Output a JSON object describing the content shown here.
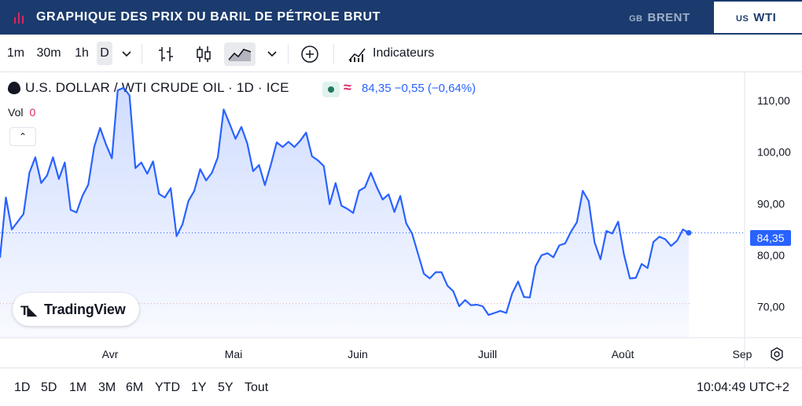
{
  "header": {
    "title": "GRAPHIQUE DES PRIX DU BARIL DE PÉTROLE BRUT",
    "tabs": [
      {
        "cc": "GB",
        "label": "BRENT",
        "active": false
      },
      {
        "cc": "US",
        "label": "WTI",
        "active": true
      }
    ]
  },
  "toolbar": {
    "intervals": [
      "1m",
      "30m",
      "1h",
      "D"
    ],
    "active_interval": "D",
    "indicators_label": "Indicateurs"
  },
  "legend": {
    "symbol": "U.S. DOLLAR / WTI CRUDE OIL · 1D · ICE",
    "approx_glyph": "≈",
    "price_text": "84,35  −0,55 (−0,64%)",
    "vol_label": "Vol",
    "vol_value": "0",
    "collapse_glyph": "⌃"
  },
  "price_tag": "84,35",
  "watermark": "TradingView",
  "range_bar": {
    "ranges": [
      "1D",
      "5D",
      "1M",
      "3M",
      "6M",
      "YTD",
      "1Y",
      "5Y",
      "Tout"
    ],
    "clock": "10:04:49 UTC+2"
  },
  "colors": {
    "header_bg": "#1b3b6e",
    "line": "#2962ff",
    "accent_red": "#e0245e"
  },
  "icons": [
    "bars-chart-icon",
    "chevron-down-icon",
    "bar-style-icon",
    "candles-icon",
    "area-chart-icon",
    "plus-circle-icon",
    "indicators-icon",
    "drop-icon",
    "gear-icon"
  ],
  "chart_data": {
    "type": "area",
    "y_ticks": [
      "110,00",
      "100,00",
      "90,00",
      "80,00",
      "70,00"
    ],
    "ylim": [
      64,
      115.5
    ],
    "x_labels": [
      "Avr",
      "Mai",
      "Juin",
      "Juill",
      "Août",
      "Sep"
    ],
    "last_value": 84.35,
    "grid": false,
    "values": [
      79.5,
      91.2,
      85.0,
      86.5,
      88.0,
      96.0,
      99.0,
      94.0,
      95.5,
      99.0,
      94.8,
      98.0,
      88.8,
      88.3,
      91.5,
      93.7,
      101.0,
      104.7,
      101.5,
      98.8,
      112.0,
      112.5,
      111.0,
      96.9,
      98.0,
      95.8,
      98.2,
      91.9,
      91.2,
      93.0,
      83.7,
      86.0,
      90.5,
      92.5,
      96.7,
      94.5,
      96.0,
      99.0,
      108.3,
      105.5,
      102.6,
      104.9,
      101.7,
      96.3,
      97.5,
      93.6,
      97.5,
      101.9,
      101.0,
      102.0,
      101.0,
      102.2,
      103.8,
      99.2,
      98.4,
      97.3,
      89.9,
      94.0,
      89.6,
      89.0,
      88.2,
      92.5,
      93.2,
      96.0,
      93.2,
      90.8,
      91.8,
      88.4,
      91.5,
      86.2,
      84.2,
      80.3,
      76.4,
      75.5,
      76.7,
      76.7,
      74.1,
      73.0,
      70.1,
      71.3,
      70.3,
      70.4,
      70.1,
      68.4,
      68.8,
      69.2,
      68.8,
      72.6,
      74.9,
      71.9,
      71.8,
      77.9,
      80.0,
      80.4,
      79.6,
      81.9,
      82.3,
      84.6,
      86.4,
      92.5,
      90.5,
      82.5,
      79.2,
      84.7,
      84.2,
      86.5,
      80.1,
      75.5,
      75.6,
      78.3,
      77.5,
      82.6,
      83.6,
      83.1,
      81.8,
      82.8,
      85.0,
      84.35
    ]
  }
}
